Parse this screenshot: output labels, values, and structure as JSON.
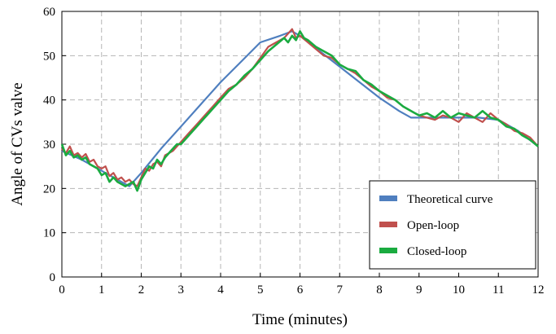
{
  "chart_data": {
    "type": "line",
    "title": "",
    "xlabel": "Time (minutes)",
    "ylabel": "Angle of CVs valve",
    "xlim": [
      0,
      12
    ],
    "ylim": [
      0,
      60
    ],
    "x_ticks": [
      "0",
      "1",
      "2",
      "3",
      "4",
      "5",
      "6",
      "7",
      "8",
      "9",
      "10",
      "11",
      "12"
    ],
    "y_ticks": [
      "0",
      "10",
      "20",
      "30",
      "40",
      "50",
      "60"
    ],
    "grid": true,
    "legend_position": "lower-right",
    "series": [
      {
        "name": "Theoretical curve",
        "color": "#4f7fbf",
        "x": [
          0,
          0.5,
          1.0,
          1.5,
          1.7,
          2.0,
          2.5,
          3.0,
          3.5,
          4.0,
          4.5,
          5.0,
          5.5,
          5.8,
          6.0,
          6.5,
          7.0,
          7.5,
          8.0,
          8.5,
          8.8,
          9.0,
          9.5,
          10.0,
          10.5,
          11.0,
          11.5,
          12.0
        ],
        "y": [
          28.5,
          26.5,
          24.0,
          21.5,
          20.5,
          23.5,
          29.0,
          34.0,
          39.0,
          44.0,
          48.5,
          53.0,
          54.5,
          55.5,
          54.5,
          51.0,
          47.5,
          44.0,
          40.5,
          37.5,
          36.0,
          36.0,
          36.0,
          36.0,
          36.0,
          35.5,
          33.0,
          29.5
        ]
      },
      {
        "name": "Open-loop",
        "color": "#c0504d",
        "x": [
          0,
          0.1,
          0.2,
          0.3,
          0.4,
          0.5,
          0.6,
          0.7,
          0.8,
          0.9,
          1.0,
          1.1,
          1.2,
          1.3,
          1.4,
          1.5,
          1.6,
          1.7,
          1.8,
          1.9,
          2.0,
          2.1,
          2.2,
          2.3,
          2.4,
          2.5,
          2.6,
          2.7,
          2.8,
          2.9,
          3.0,
          3.2,
          3.4,
          3.6,
          3.8,
          4.0,
          4.2,
          4.4,
          4.6,
          4.8,
          5.0,
          5.2,
          5.4,
          5.6,
          5.7,
          5.8,
          5.9,
          6.0,
          6.2,
          6.4,
          6.6,
          6.8,
          7.0,
          7.2,
          7.4,
          7.6,
          7.8,
          8.0,
          8.2,
          8.4,
          8.6,
          8.8,
          9.0,
          9.2,
          9.4,
          9.6,
          9.8,
          10.0,
          10.2,
          10.4,
          10.6,
          10.8,
          11.0,
          11.2,
          11.4,
          11.6,
          11.8,
          12.0
        ],
        "y": [
          29.0,
          28.0,
          29.5,
          27.5,
          28.0,
          27.0,
          27.8,
          26.0,
          26.5,
          25.0,
          24.5,
          25.0,
          22.8,
          23.5,
          22.0,
          22.5,
          21.5,
          22.0,
          21.0,
          20.5,
          22.5,
          24.5,
          24.0,
          25.5,
          26.0,
          25.0,
          27.5,
          28.0,
          28.5,
          29.5,
          30.5,
          32.5,
          34.5,
          36.5,
          38.5,
          40.5,
          42.5,
          43.5,
          45.0,
          47.0,
          49.5,
          52.0,
          53.0,
          54.0,
          55.0,
          56.0,
          54.0,
          54.5,
          53.0,
          51.5,
          50.0,
          49.5,
          48.0,
          47.0,
          46.0,
          44.5,
          43.0,
          42.0,
          40.5,
          40.0,
          38.5,
          37.5,
          36.5,
          36.0,
          35.5,
          36.5,
          36.0,
          35.0,
          37.0,
          36.0,
          35.0,
          37.0,
          35.5,
          34.5,
          33.0,
          32.5,
          31.5,
          29.5
        ]
      },
      {
        "name": "Closed-loop",
        "color": "#1aab40",
        "x": [
          0,
          0.1,
          0.2,
          0.3,
          0.4,
          0.5,
          0.6,
          0.7,
          0.8,
          0.9,
          1.0,
          1.1,
          1.2,
          1.3,
          1.4,
          1.5,
          1.6,
          1.7,
          1.8,
          1.9,
          2.0,
          2.1,
          2.2,
          2.3,
          2.4,
          2.5,
          2.6,
          2.7,
          2.8,
          2.9,
          3.0,
          3.2,
          3.4,
          3.6,
          3.8,
          4.0,
          4.2,
          4.4,
          4.6,
          4.8,
          5.0,
          5.2,
          5.4,
          5.6,
          5.7,
          5.8,
          5.9,
          6.0,
          6.1,
          6.2,
          6.4,
          6.6,
          6.8,
          7.0,
          7.2,
          7.4,
          7.6,
          7.8,
          8.0,
          8.2,
          8.4,
          8.6,
          8.8,
          9.0,
          9.2,
          9.4,
          9.6,
          9.8,
          10.0,
          10.2,
          10.4,
          10.6,
          10.8,
          11.0,
          11.2,
          11.4,
          11.6,
          11.8,
          12.0
        ],
        "y": [
          30.0,
          27.5,
          28.5,
          27.0,
          27.5,
          26.5,
          27.0,
          25.5,
          25.0,
          24.5,
          23.0,
          23.5,
          21.5,
          22.5,
          21.5,
          21.0,
          20.5,
          21.0,
          21.5,
          19.5,
          22.0,
          23.5,
          25.0,
          24.5,
          26.5,
          25.5,
          27.0,
          28.0,
          29.0,
          30.0,
          30.0,
          32.0,
          34.0,
          36.0,
          38.0,
          40.0,
          42.0,
          43.5,
          45.5,
          47.0,
          49.0,
          51.0,
          52.5,
          54.0,
          53.0,
          54.5,
          53.5,
          55.5,
          54.0,
          53.5,
          52.0,
          51.0,
          50.0,
          48.0,
          47.0,
          46.5,
          44.5,
          43.5,
          42.0,
          41.0,
          40.0,
          38.5,
          37.5,
          36.5,
          37.0,
          36.0,
          37.5,
          36.0,
          37.0,
          36.5,
          36.0,
          37.5,
          36.0,
          35.5,
          34.0,
          33.5,
          32.0,
          31.0,
          29.5
        ]
      }
    ]
  }
}
